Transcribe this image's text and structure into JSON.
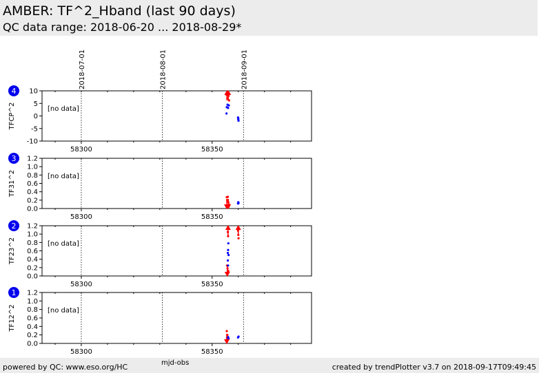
{
  "header": {
    "title": "AMBER: TF^2_Hband (last 90 days)",
    "subtitle": "QC data range: 2018-06-20 ... 2018-08-29*"
  },
  "footer": {
    "left": "powered by QC: www.eso.org/HC",
    "right": "created by trendPlotter v3.7 on 2018-09-17T09:49:45",
    "xlabel": "mjd-obs"
  },
  "colors": {
    "good": "#0000ff",
    "flagged": "#ff0000",
    "badge": "#0000ee"
  },
  "chart_data": {
    "type": "scatter",
    "xlim": [
      58285,
      58388
    ],
    "x_ticks": [
      58300,
      58350
    ],
    "date_markers": [
      {
        "label": "2018-07-01",
        "mjd": 58300
      },
      {
        "label": "2018-08-01",
        "mjd": 58331
      },
      {
        "label": "2018-09-01",
        "mjd": 58362
      }
    ],
    "panels": [
      {
        "badge": "4",
        "ylabel": "TFCP^2",
        "ylim": [
          -10,
          10
        ],
        "yticks": [
          -10,
          -5,
          0,
          5,
          10
        ],
        "no_data_label": "[no data]",
        "good": [
          [
            58355.6,
            3.5
          ],
          [
            58355.9,
            4.5
          ],
          [
            58356.1,
            3.2
          ],
          [
            58356.4,
            4.2
          ],
          [
            58355.5,
            1.0
          ],
          [
            58359.9,
            -0.6
          ],
          [
            58360.0,
            -1.4
          ],
          [
            58360.1,
            -1.9
          ],
          [
            58360.0,
            -0.9
          ]
        ],
        "flagged": [
          [
            58355.6,
            8.3
          ],
          [
            58355.8,
            7.0
          ],
          [
            58356.0,
            9.0
          ],
          [
            58356.3,
            8.0
          ],
          [
            58356.5,
            6.2
          ]
        ],
        "up_arrows": [
          58355.7,
          58356.2
        ],
        "down_arrows": []
      },
      {
        "badge": "3",
        "ylabel": "TF31^2",
        "ylim": [
          0,
          1.2
        ],
        "yticks": [
          0.0,
          0.2,
          0.4,
          0.6,
          0.8,
          1.0,
          1.2
        ],
        "no_data_label": "[no data]",
        "good": [
          [
            58359.9,
            0.12
          ],
          [
            58360.0,
            0.15
          ],
          [
            58360.1,
            0.13
          ]
        ],
        "flagged": [
          [
            58355.6,
            0.27
          ],
          [
            58355.8,
            0.2
          ],
          [
            58356.0,
            0.28
          ],
          [
            58356.2,
            0.15
          ],
          [
            58356.4,
            0.1
          ],
          [
            58355.9,
            0.05
          ]
        ],
        "up_arrows": [],
        "down_arrows": [
          58355.6,
          58356.2
        ]
      },
      {
        "badge": "2",
        "ylabel": "TF23^2",
        "ylim": [
          0,
          1.2
        ],
        "yticks": [
          0.0,
          0.2,
          0.4,
          0.6,
          0.8,
          1.0,
          1.2
        ],
        "no_data_label": "[no data]",
        "good": [
          [
            58356.2,
            0.78
          ],
          [
            58356.1,
            0.62
          ],
          [
            58356.0,
            0.55
          ],
          [
            58356.3,
            0.5
          ],
          [
            58356.0,
            0.37
          ],
          [
            58356.1,
            0.25
          ]
        ],
        "flagged": [
          [
            58356.0,
            1.05
          ],
          [
            58356.1,
            0.95
          ],
          [
            58355.7,
            0.25
          ],
          [
            58355.9,
            0.18
          ],
          [
            58356.2,
            0.12
          ],
          [
            58359.9,
            1.08
          ],
          [
            58360.0,
            0.98
          ],
          [
            58360.1,
            0.9
          ],
          [
            58360.1,
            1.12
          ]
        ],
        "up_arrows": [
          58356.1,
          58360.0
        ],
        "down_arrows": [
          58355.8
        ]
      },
      {
        "badge": "1",
        "ylabel": "TF12^2",
        "ylim": [
          0,
          1.2
        ],
        "yticks": [
          0.0,
          0.2,
          0.4,
          0.6,
          0.8,
          1.0,
          1.2
        ],
        "no_data_label": "[no data]",
        "good": [
          [
            58355.7,
            0.13
          ],
          [
            58355.9,
            0.1
          ],
          [
            58356.1,
            0.15
          ],
          [
            58356.3,
            0.12
          ],
          [
            58356.0,
            0.08
          ],
          [
            58359.9,
            0.14
          ],
          [
            58360.1,
            0.16
          ]
        ],
        "flagged": [
          [
            58355.6,
            0.29
          ],
          [
            58355.8,
            0.2
          ],
          [
            58356.0,
            0.12
          ],
          [
            58356.2,
            0.1
          ]
        ],
        "up_arrows": [],
        "down_arrows": [
          58355.6
        ]
      }
    ]
  }
}
